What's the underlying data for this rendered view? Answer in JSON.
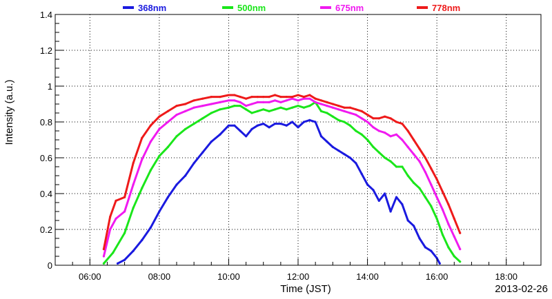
{
  "chart_data": {
    "type": "line",
    "xlabel": "Time (JST)",
    "ylabel": "Intensity (a.u.)",
    "date_label": "2013-02-26",
    "xlim": [
      "05:00",
      "19:00"
    ],
    "ylim": [
      0,
      1.4
    ],
    "x_ticks": [
      "06:00",
      "08:00",
      "10:00",
      "12:00",
      "14:00",
      "16:00",
      "18:00"
    ],
    "y_ticks": [
      "0",
      "0.2",
      "0.4",
      "0.6",
      "0.8",
      "1",
      "1.2",
      "1.4"
    ],
    "grid": true,
    "legend_placement": "top",
    "series": [
      {
        "name": "368nm",
        "color": "#1a1adf",
        "x": [
          "06:48",
          "07:00",
          "07:15",
          "07:30",
          "07:45",
          "08:00",
          "08:15",
          "08:30",
          "08:45",
          "09:00",
          "09:15",
          "09:30",
          "09:45",
          "10:00",
          "10:10",
          "10:20",
          "10:30",
          "10:40",
          "10:50",
          "11:00",
          "11:10",
          "11:20",
          "11:30",
          "11:40",
          "11:50",
          "12:00",
          "12:10",
          "12:20",
          "12:30",
          "12:40",
          "12:50",
          "13:00",
          "13:10",
          "13:20",
          "13:30",
          "13:40",
          "13:50",
          "14:00",
          "14:10",
          "14:20",
          "14:30",
          "14:40",
          "14:50",
          "15:00",
          "15:10",
          "15:20",
          "15:30",
          "15:40",
          "15:50",
          "16:00",
          "16:05"
        ],
        "values": [
          0.01,
          0.03,
          0.08,
          0.14,
          0.21,
          0.3,
          0.38,
          0.45,
          0.5,
          0.57,
          0.63,
          0.69,
          0.73,
          0.78,
          0.78,
          0.75,
          0.72,
          0.76,
          0.78,
          0.79,
          0.77,
          0.79,
          0.79,
          0.78,
          0.8,
          0.77,
          0.8,
          0.81,
          0.8,
          0.72,
          0.69,
          0.66,
          0.64,
          0.62,
          0.6,
          0.57,
          0.51,
          0.45,
          0.42,
          0.36,
          0.4,
          0.3,
          0.38,
          0.34,
          0.25,
          0.22,
          0.15,
          0.1,
          0.08,
          0.04,
          0.01
        ]
      },
      {
        "name": "500nm",
        "color": "#1ae61a",
        "x": [
          "06:24",
          "06:40",
          "07:00",
          "07:15",
          "07:30",
          "07:45",
          "08:00",
          "08:15",
          "08:30",
          "08:45",
          "09:00",
          "09:15",
          "09:30",
          "09:45",
          "10:00",
          "10:10",
          "10:20",
          "10:30",
          "10:40",
          "10:50",
          "11:00",
          "11:10",
          "11:20",
          "11:30",
          "11:40",
          "11:50",
          "12:00",
          "12:10",
          "12:20",
          "12:30",
          "12:40",
          "12:50",
          "13:00",
          "13:10",
          "13:20",
          "13:30",
          "13:40",
          "13:50",
          "14:00",
          "14:10",
          "14:20",
          "14:30",
          "14:40",
          "14:50",
          "15:00",
          "15:10",
          "15:20",
          "15:30",
          "15:40",
          "15:50",
          "16:00",
          "16:10",
          "16:20",
          "16:30",
          "16:40"
        ],
        "values": [
          0.01,
          0.07,
          0.18,
          0.32,
          0.43,
          0.53,
          0.61,
          0.66,
          0.72,
          0.76,
          0.79,
          0.82,
          0.85,
          0.87,
          0.88,
          0.89,
          0.89,
          0.87,
          0.85,
          0.86,
          0.87,
          0.86,
          0.87,
          0.88,
          0.87,
          0.88,
          0.89,
          0.88,
          0.89,
          0.91,
          0.86,
          0.85,
          0.83,
          0.81,
          0.8,
          0.78,
          0.75,
          0.73,
          0.7,
          0.66,
          0.63,
          0.6,
          0.58,
          0.55,
          0.55,
          0.5,
          0.46,
          0.43,
          0.38,
          0.33,
          0.26,
          0.17,
          0.1,
          0.05,
          0.02
        ]
      },
      {
        "name": "675nm",
        "color": "#f01af0",
        "x": [
          "06:24",
          "06:35",
          "06:45",
          "07:00",
          "07:15",
          "07:30",
          "07:45",
          "08:00",
          "08:15",
          "08:30",
          "08:45",
          "09:00",
          "09:15",
          "09:30",
          "09:45",
          "10:00",
          "10:10",
          "10:20",
          "10:30",
          "10:40",
          "10:50",
          "11:00",
          "11:10",
          "11:20",
          "11:30",
          "11:40",
          "11:50",
          "12:00",
          "12:10",
          "12:20",
          "12:30",
          "12:40",
          "12:50",
          "13:00",
          "13:10",
          "13:20",
          "13:30",
          "13:40",
          "13:50",
          "14:00",
          "14:10",
          "14:20",
          "14:30",
          "14:40",
          "14:50",
          "15:00",
          "15:10",
          "15:20",
          "15:30",
          "15:40",
          "15:50",
          "16:00",
          "16:10",
          "16:20",
          "16:30",
          "16:40"
        ],
        "values": [
          0.05,
          0.2,
          0.26,
          0.3,
          0.45,
          0.59,
          0.69,
          0.76,
          0.8,
          0.84,
          0.86,
          0.88,
          0.89,
          0.9,
          0.91,
          0.92,
          0.92,
          0.91,
          0.89,
          0.9,
          0.91,
          0.91,
          0.91,
          0.92,
          0.91,
          0.92,
          0.93,
          0.92,
          0.93,
          0.93,
          0.91,
          0.9,
          0.89,
          0.88,
          0.87,
          0.86,
          0.85,
          0.84,
          0.82,
          0.8,
          0.77,
          0.75,
          0.74,
          0.72,
          0.73,
          0.7,
          0.66,
          0.62,
          0.58,
          0.52,
          0.45,
          0.38,
          0.31,
          0.23,
          0.16,
          0.09
        ]
      },
      {
        "name": "778nm",
        "color": "#ee1a1a",
        "x": [
          "06:24",
          "06:35",
          "06:45",
          "07:00",
          "07:15",
          "07:30",
          "07:45",
          "08:00",
          "08:15",
          "08:30",
          "08:45",
          "09:00",
          "09:15",
          "09:30",
          "09:45",
          "10:00",
          "10:10",
          "10:20",
          "10:30",
          "10:40",
          "10:50",
          "11:00",
          "11:10",
          "11:20",
          "11:30",
          "11:40",
          "11:50",
          "12:00",
          "12:10",
          "12:20",
          "12:30",
          "12:40",
          "12:50",
          "13:00",
          "13:10",
          "13:20",
          "13:30",
          "13:40",
          "13:50",
          "14:00",
          "14:10",
          "14:20",
          "14:30",
          "14:40",
          "14:50",
          "15:00",
          "15:10",
          "15:20",
          "15:30",
          "15:40",
          "15:50",
          "16:00",
          "16:10",
          "16:20",
          "16:30",
          "16:40"
        ],
        "values": [
          0.09,
          0.27,
          0.36,
          0.38,
          0.57,
          0.71,
          0.78,
          0.83,
          0.86,
          0.89,
          0.9,
          0.92,
          0.93,
          0.94,
          0.94,
          0.95,
          0.95,
          0.94,
          0.93,
          0.94,
          0.94,
          0.94,
          0.94,
          0.95,
          0.94,
          0.94,
          0.94,
          0.95,
          0.94,
          0.95,
          0.93,
          0.92,
          0.91,
          0.9,
          0.89,
          0.88,
          0.88,
          0.87,
          0.86,
          0.84,
          0.82,
          0.82,
          0.83,
          0.82,
          0.8,
          0.79,
          0.75,
          0.7,
          0.65,
          0.6,
          0.54,
          0.48,
          0.41,
          0.34,
          0.26,
          0.18
        ]
      }
    ]
  }
}
